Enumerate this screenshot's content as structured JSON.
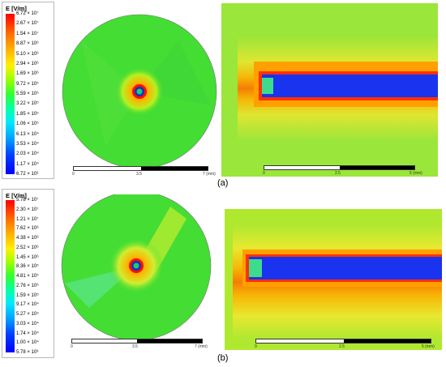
{
  "legend_a": {
    "title": "E [V/m]",
    "ticks": [
      "6.72 × 10⁷",
      "2.67 × 10⁷",
      "1.54 × 10⁷",
      "8.87 × 10⁶",
      "5.10 × 10⁶",
      "2.94 × 10⁶",
      "1.69 × 10⁶",
      "9.72 × 10⁵",
      "5.59 × 10⁵",
      "3.22 × 10⁵",
      "1.85 × 10⁵",
      "1.06 × 10⁵",
      "6.13 × 10⁴",
      "3.53 × 10⁴",
      "2.03 × 10⁴",
      "1.17 × 10⁴",
      "6.72 × 10³"
    ]
  },
  "legend_b": {
    "title": "E [V/m]",
    "ticks": [
      "5.78 × 10⁷",
      "2.30 × 10⁷",
      "1.21 × 10⁷",
      "7.62 × 10⁶",
      "4.38 × 10⁶",
      "2.52 × 10⁶",
      "1.45 × 10⁶",
      "8.36 × 10⁵",
      "4.81 × 10⁵",
      "2.76 × 10⁵",
      "1.59 × 10⁵",
      "9.17 × 10⁴",
      "5.27 × 10⁴",
      "3.03 × 10⁴",
      "1.74 × 10⁴",
      "1.00 × 10⁴",
      "5.78 × 10³"
    ]
  },
  "scales": {
    "disk_a": [
      "0",
      "3.5",
      "7 (mm)"
    ],
    "rect_a": [
      "0",
      "2.5",
      "5 (mm)"
    ],
    "disk_b": [
      "0",
      "3.5",
      "7 (mm)"
    ],
    "rect_b": [
      "0",
      "2.5",
      "5 (mm)"
    ]
  },
  "captions": {
    "a": "(a)",
    "b": "(b)"
  },
  "colors": {
    "background": "#33dd33",
    "core": "#2030e0",
    "hot": "#ff2000",
    "warm": "#ffd000"
  }
}
